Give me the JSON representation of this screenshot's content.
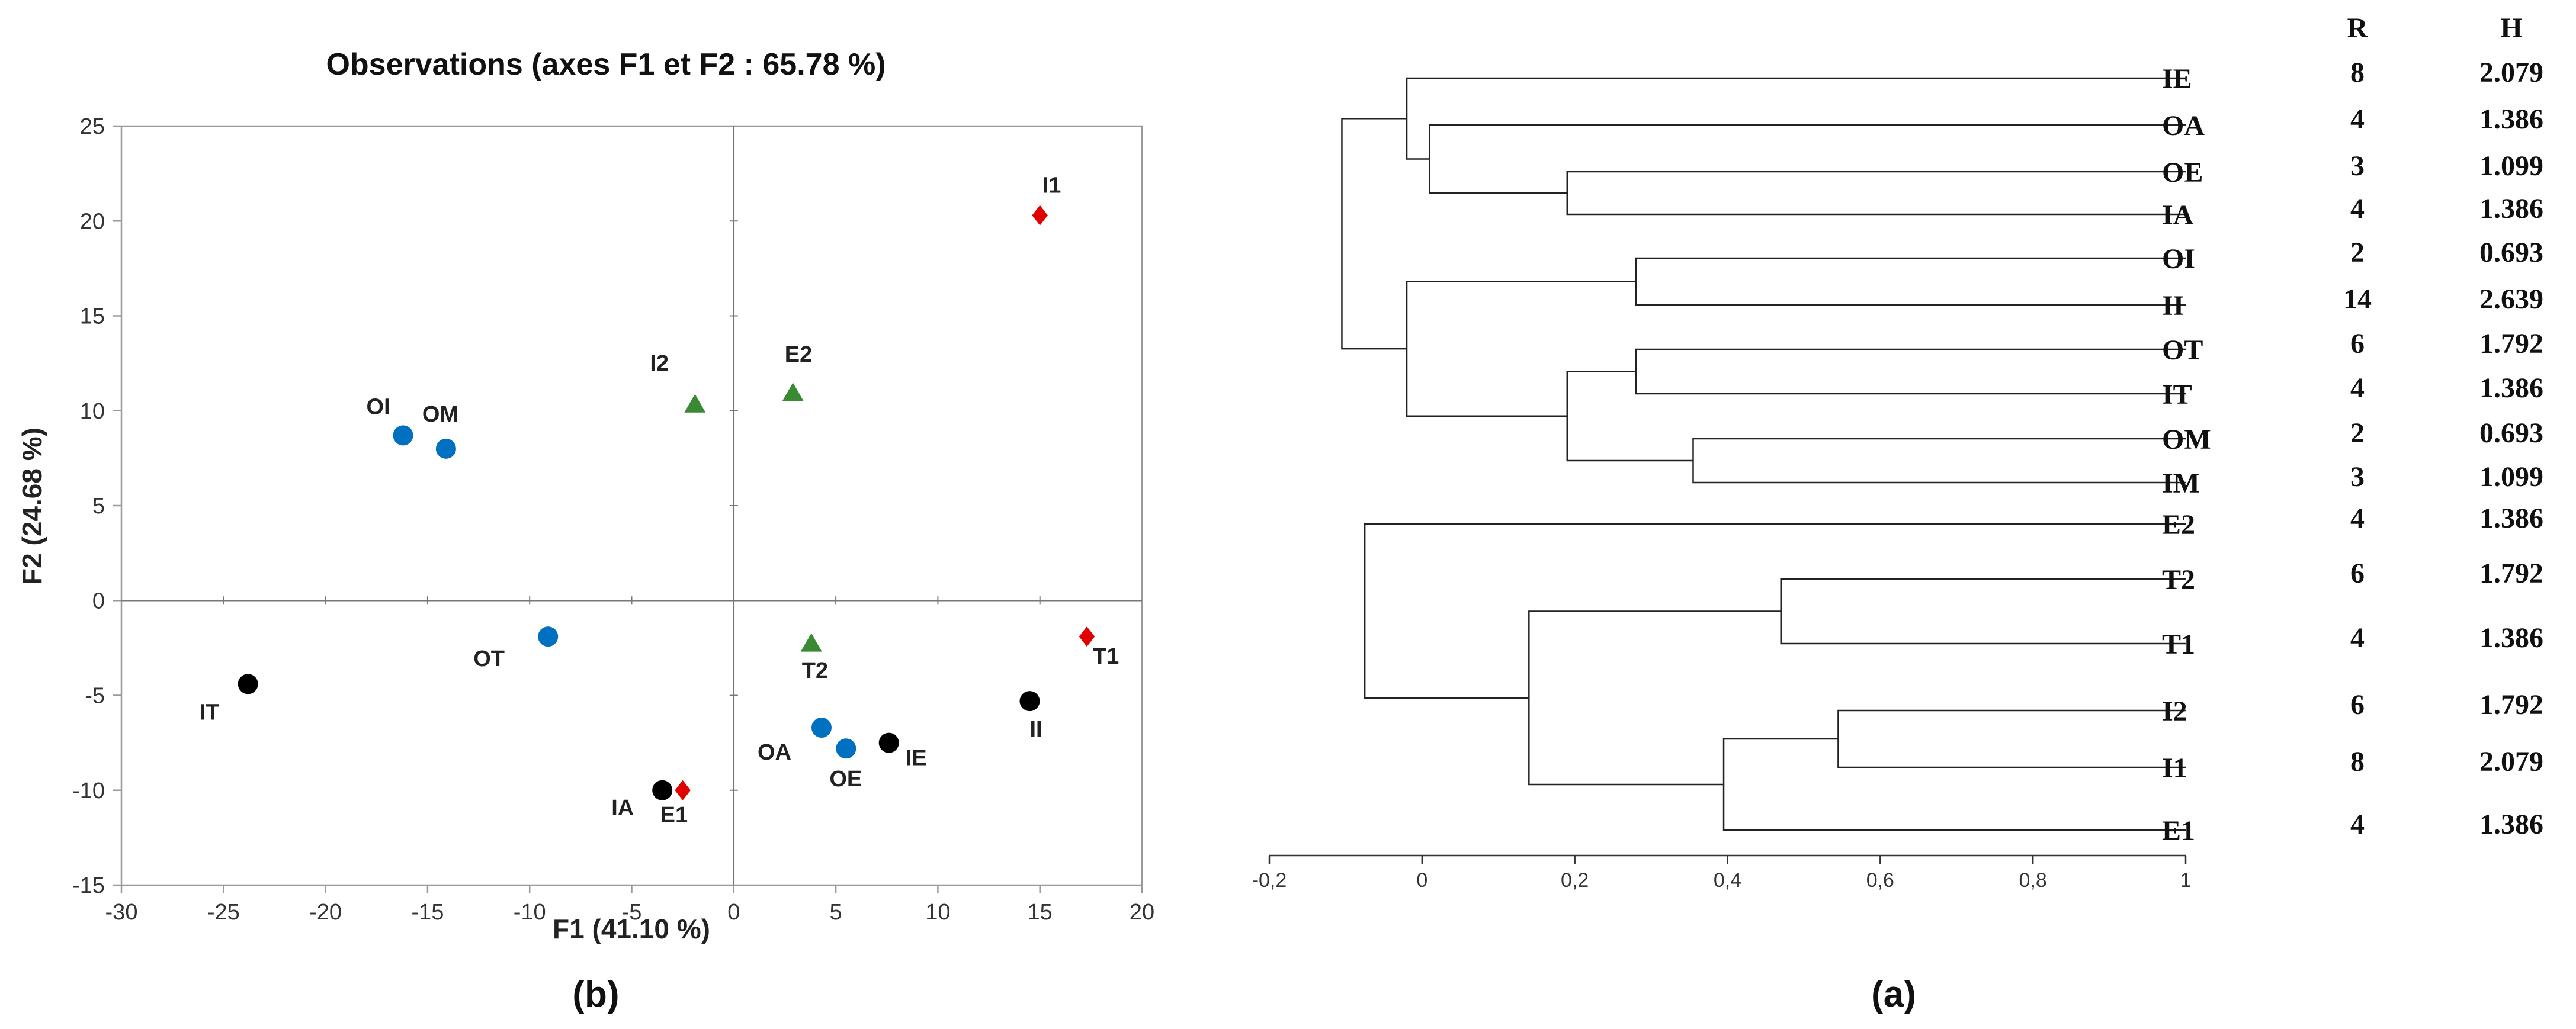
{
  "chart_data": [
    {
      "type": "scatter",
      "panel_label": "(b)",
      "title": "Observations (axes F1 et F2 : 65.78 %)",
      "xlabel": "F1 (41.10 %)",
      "ylabel": "F2 (24.68 %)",
      "xlim": [
        -30,
        20
      ],
      "ylim": [
        -15,
        25
      ],
      "xticks": [
        -30,
        -25,
        -20,
        -15,
        -10,
        -5,
        0,
        5,
        10,
        15,
        20
      ],
      "yticks": [
        -15,
        -10,
        -5,
        0,
        5,
        10,
        15,
        20,
        25
      ],
      "series": [
        {
          "name": "black",
          "marker": "circle",
          "color": "#000000",
          "points": [
            {
              "label": "IT",
              "x": -23.8,
              "y": -4.4
            },
            {
              "label": "IA",
              "x": -3.5,
              "y": -10.0
            },
            {
              "label": "IE",
              "x": 7.6,
              "y": -7.5
            },
            {
              "label": "II",
              "x": 14.5,
              "y": -5.3
            }
          ]
        },
        {
          "name": "blue",
          "marker": "circle",
          "color": "#0070C0",
          "points": [
            {
              "label": "OI",
              "x": -16.2,
              "y": 8.7
            },
            {
              "label": "OM",
              "x": -14.1,
              "y": 8.0
            },
            {
              "label": "OT",
              "x": -9.1,
              "y": -1.9
            },
            {
              "label": "OA",
              "x": 4.3,
              "y": -6.7
            },
            {
              "label": "OE",
              "x": 5.5,
              "y": -7.8
            }
          ]
        },
        {
          "name": "green",
          "marker": "triangle",
          "color": "#3A8A34",
          "points": [
            {
              "label": "I2",
              "x": -1.9,
              "y": 10.3
            },
            {
              "label": "E2",
              "x": 2.9,
              "y": 10.9
            },
            {
              "label": "T2",
              "x": 3.8,
              "y": -2.3
            }
          ]
        },
        {
          "name": "red",
          "marker": "diamond",
          "color": "#E00000",
          "points": [
            {
              "label": "I1",
              "x": 15.0,
              "y": 20.3
            },
            {
              "label": "T1",
              "x": 17.3,
              "y": -1.9
            },
            {
              "label": "E1",
              "x": -2.5,
              "y": -10.0
            }
          ]
        }
      ]
    },
    {
      "type": "dendrogram",
      "panel_label": "(a)",
      "xlim": [
        -0.2,
        1
      ],
      "xticks": [
        "-0,2",
        "0",
        "0,2",
        "0,4",
        "0,6",
        "0,8",
        "1"
      ],
      "xtick_values": [
        -0.2,
        0,
        0.2,
        0.4,
        0.6,
        0.8,
        1
      ],
      "column_headers": {
        "r": "R",
        "h": "H"
      },
      "leaves": [
        {
          "label": "IE",
          "R": "8",
          "H": "2.079"
        },
        {
          "label": "OA",
          "R": "4",
          "H": "1.386"
        },
        {
          "label": "OE",
          "R": "3",
          "H": "1.099"
        },
        {
          "label": "IA",
          "R": "4",
          "H": "1.386"
        },
        {
          "label": "OI",
          "R": "2",
          "H": "0.693"
        },
        {
          "label": "II",
          "R": "14",
          "H": "2.639"
        },
        {
          "label": "OT",
          "R": "6",
          "H": "1.792"
        },
        {
          "label": "IT",
          "R": "4",
          "H": "1.386"
        },
        {
          "label": "OM",
          "R": "2",
          "H": "0.693"
        },
        {
          "label": "IM",
          "R": "3",
          "H": "1.099"
        },
        {
          "label": "E2",
          "R": "4",
          "H": "1.386"
        },
        {
          "label": "T2",
          "R": "6",
          "H": "1.792"
        },
        {
          "label": "T1",
          "R": "4",
          "H": "1.386"
        },
        {
          "label": "I2",
          "R": "6",
          "H": "1.792"
        },
        {
          "label": "I1",
          "R": "8",
          "H": "2.079"
        },
        {
          "label": "E1",
          "R": "4",
          "H": "1.386"
        }
      ],
      "merges": [
        {
          "id": "m1",
          "children": [
            "OE",
            "IA"
          ],
          "height": 0.19
        },
        {
          "id": "m2",
          "children": [
            "OA",
            "m1"
          ],
          "height": 0.01
        },
        {
          "id": "m3",
          "children": [
            "IE",
            "m2"
          ],
          "height": -0.02
        },
        {
          "id": "m4",
          "children": [
            "OI",
            "II"
          ],
          "height": 0.28
        },
        {
          "id": "m5",
          "children": [
            "OT",
            "IT"
          ],
          "height": 0.28
        },
        {
          "id": "m6",
          "children": [
            "OM",
            "IM"
          ],
          "height": 0.355
        },
        {
          "id": "m7",
          "children": [
            "m5",
            "m6"
          ],
          "height": 0.19
        },
        {
          "id": "m8",
          "children": [
            "m4",
            "m7"
          ],
          "height": -0.02
        },
        {
          "id": "m9",
          "children": [
            "m3",
            "m8"
          ],
          "height": -0.105
        },
        {
          "id": "m10",
          "children": [
            "T2",
            "T1"
          ],
          "height": 0.47
        },
        {
          "id": "m11",
          "children": [
            "I2",
            "I1"
          ],
          "height": 0.545
        },
        {
          "id": "m12",
          "children": [
            "m11",
            "E1"
          ],
          "height": 0.395
        },
        {
          "id": "m13",
          "children": [
            "m10",
            "m12"
          ],
          "height": 0.14
        },
        {
          "id": "m14",
          "children": [
            "E2",
            "m13"
          ],
          "height": -0.075
        }
      ]
    }
  ]
}
